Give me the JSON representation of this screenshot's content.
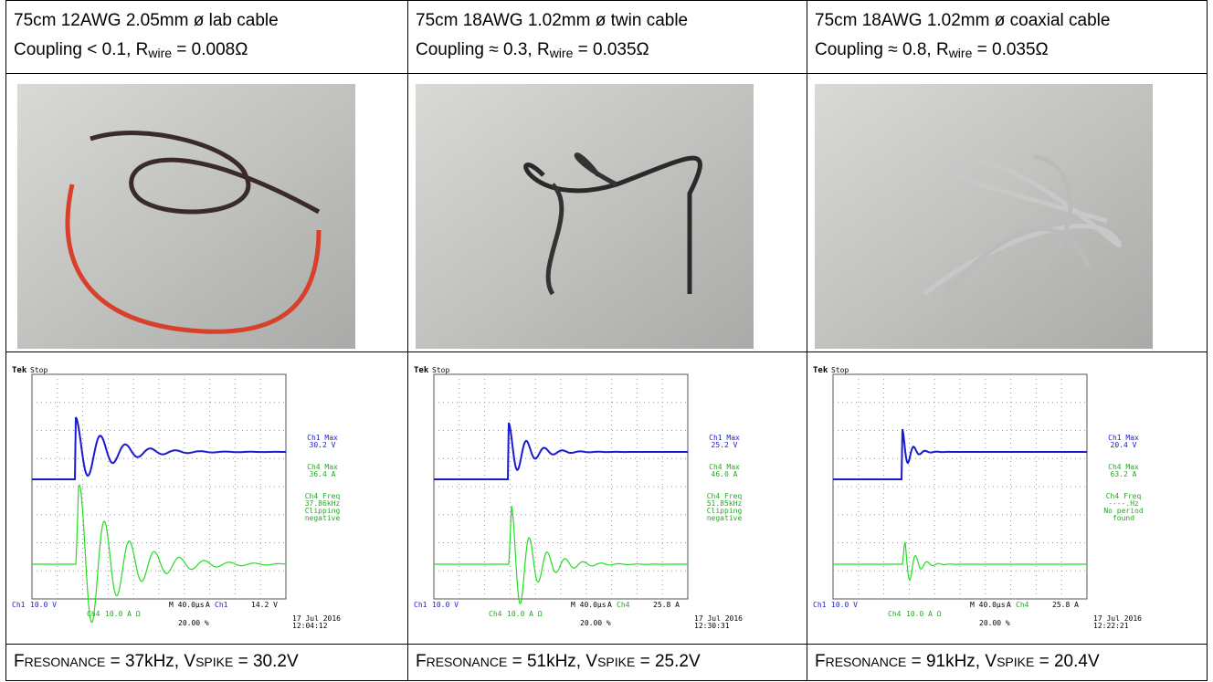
{
  "cells": [
    {
      "header": {
        "line1": "75cm 12AWG 2.05mm ø lab cable",
        "coupling": "Coupling < 0.1, R",
        "r_sub": "wire",
        "r_rest": " = 0.008Ω"
      },
      "scope": {
        "brand": "Tek",
        "state": "Stop",
        "ch1_readouts": [
          "Ch1 Max",
          "30.2 V"
        ],
        "ch4_readouts": [
          "Ch4 Max",
          "36.4 A",
          "Ch4 Freq",
          "37.86kHz",
          "Clipping",
          "negative"
        ],
        "ch1": "Ch1",
        "ch1_scale": "10.0 V",
        "timebase": "M 40.0µs",
        "trig_mode": "A",
        "trig_ch": "Ch1",
        "trig_level": "14.2 V",
        "ch4": "Ch4",
        "ch4_scale": "10.0 A Ω",
        "trig_pos": "20.00 %",
        "date": "17 Jul  2016",
        "time": "12:04:12"
      },
      "result": {
        "f": "F",
        "f_sub": "RESONANCE",
        "f_rest": " = 37kHz, ",
        "v": "V",
        "v_sub": "SPIKE",
        "v_rest": " = 30.2V"
      }
    },
    {
      "header": {
        "line1": "75cm 18AWG 1.02mm ø twin cable",
        "coupling": "Coupling ≈ 0.3, R",
        "r_sub": "wire",
        "r_rest": " = 0.035Ω"
      },
      "scope": {
        "brand": "Tek",
        "state": "Stop",
        "ch1_readouts": [
          "Ch1 Max",
          "25.2 V"
        ],
        "ch4_readouts": [
          "Ch4 Max",
          "46.0 A",
          "Ch4 Freq",
          "51.85kHz",
          "Clipping",
          "negative"
        ],
        "ch1": "Ch1",
        "ch1_scale": "10.0 V",
        "timebase": "M 40.0µs",
        "trig_mode": "A",
        "trig_ch": "Ch4",
        "trig_level": "25.8 A",
        "ch4": "Ch4",
        "ch4_scale": "10.0 A Ω",
        "trig_pos": "20.00 %",
        "date": "17 Jul  2016",
        "time": "12:30:31"
      },
      "result": {
        "f": "F",
        "f_sub": "RESONANCE",
        "f_rest": " = 51kHz, ",
        "v": "V",
        "v_sub": "SPIKE",
        "v_rest": " = 25.2V"
      }
    },
    {
      "header": {
        "line1": "75cm 18AWG 1.02mm ø coaxial cable",
        "coupling": "Coupling ≈ 0.8, R",
        "r_sub": "wire",
        "r_rest": " = 0.035Ω"
      },
      "scope": {
        "brand": "Tek",
        "state": "Stop",
        "ch1_readouts": [
          "Ch1 Max",
          "20.4 V"
        ],
        "ch4_readouts": [
          "Ch4 Max",
          "63.2 A",
          "Ch4 Freq",
          "----.Hz",
          "No period",
          "found"
        ],
        "ch1": "Ch1",
        "ch1_scale": "10.0 V",
        "timebase": "M 40.0µs",
        "trig_mode": "A",
        "trig_ch": "Ch4",
        "trig_level": "25.8 A",
        "ch4": "Ch4",
        "ch4_scale": "10.0 A Ω",
        "trig_pos": "20.00 %",
        "date": "17 Jul  2016",
        "time": "12:22:21"
      },
      "result": {
        "f": "F",
        "f_sub": "RESONANCE",
        "f_rest": " = 91kHz, ",
        "v": "V",
        "v_sub": "SPIKE",
        "v_rest": " = 20.4V"
      }
    }
  ]
}
